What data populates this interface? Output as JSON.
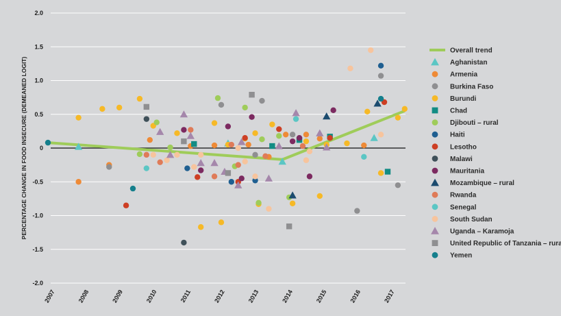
{
  "chart_data": {
    "type": "scatter",
    "title": "",
    "xlabel": "",
    "ylabel": "PERCENTAGE CHANGE IN FOOD INSECURE (DEMEANED LOGIT)",
    "xlim": [
      2007,
      2017.5
    ],
    "ylim": [
      -2.0,
      2.0
    ],
    "xticks": [
      2007,
      2008,
      2009,
      2010,
      2011,
      2012,
      2013,
      2014,
      2015,
      2016,
      2017
    ],
    "yticks": [
      2.0,
      1.5,
      1.0,
      0.5,
      0,
      -0.5,
      -1.0,
      -1.5,
      -2.0
    ],
    "ytick_labels": [
      "2.0",
      "1.5",
      "1.0",
      "0.5",
      "0",
      "-0.5",
      "-1.0",
      "-1.5",
      "-2.0"
    ],
    "grid": "horizontal",
    "legend_position": "right",
    "trend": {
      "name": "Overall trend",
      "color": "#9fcc5a",
      "x": [
        2007,
        2013.9,
        2017.5
      ],
      "y": [
        0.08,
        -0.17,
        0.55
      ]
    },
    "series": [
      {
        "name": "Aghanistan",
        "marker": "triangle",
        "color": "#5bc6c4",
        "points": [
          [
            2007.9,
            0.02
          ],
          [
            2012.3,
            0.07
          ],
          [
            2013.9,
            -0.2
          ],
          [
            2016.6,
            0.15
          ]
        ]
      },
      {
        "name": "Armenia",
        "marker": "circle",
        "color": "#ee8a36",
        "points": [
          [
            2007.9,
            -0.5
          ],
          [
            2008.8,
            -0.25
          ],
          [
            2010.0,
            0.12
          ],
          [
            2011.2,
            0.03
          ],
          [
            2011.9,
            0.04
          ],
          [
            2012.9,
            0.05
          ],
          [
            2013.5,
            -0.13
          ],
          [
            2014.0,
            0.2
          ],
          [
            2014.6,
            0.2
          ],
          [
            2015.0,
            0.14
          ],
          [
            2016.3,
            0.04
          ]
        ]
      },
      {
        "name": "Burkina Faso",
        "marker": "circle",
        "color": "#8f8f91",
        "points": [
          [
            2008.8,
            -0.28
          ],
          [
            2012.1,
            0.64
          ],
          [
            2013.1,
            -0.1
          ],
          [
            2013.3,
            0.7
          ],
          [
            2014.2,
            0.2
          ],
          [
            2016.1,
            -0.93
          ],
          [
            2016.8,
            1.07
          ],
          [
            2017.3,
            -0.55
          ]
        ]
      },
      {
        "name": "Burundi",
        "marker": "circle",
        "color": "#f6b927",
        "points": [
          [
            2007.9,
            0.45
          ],
          [
            2008.6,
            0.58
          ],
          [
            2009.1,
            0.6
          ],
          [
            2009.7,
            0.73
          ],
          [
            2010.1,
            0.33
          ],
          [
            2010.8,
            0.22
          ],
          [
            2011.5,
            -1.17
          ],
          [
            2011.9,
            0.37
          ],
          [
            2012.1,
            -1.1
          ],
          [
            2012.3,
            0.05
          ],
          [
            2012.8,
            0.14
          ],
          [
            2013.1,
            0.22
          ],
          [
            2013.2,
            -0.83
          ],
          [
            2013.6,
            0.35
          ],
          [
            2014.2,
            -0.82
          ],
          [
            2014.6,
            0.1
          ],
          [
            2015.0,
            -0.71
          ],
          [
            2015.2,
            0.05
          ],
          [
            2015.8,
            0.07
          ],
          [
            2016.4,
            0.54
          ],
          [
            2016.8,
            -0.37
          ],
          [
            2017.3,
            0.45
          ],
          [
            2017.5,
            0.58
          ]
        ]
      },
      {
        "name": "Chad",
        "marker": "square",
        "color": "#128c84",
        "points": [
          [
            2011.3,
            0.06
          ],
          [
            2013.6,
            0.03
          ],
          [
            2014.4,
            0.12
          ],
          [
            2015.3,
            0.17
          ],
          [
            2017.0,
            -0.35
          ]
        ]
      },
      {
        "name": "Djibouti – rural",
        "marker": "circle",
        "color": "#9fcc5a",
        "points": [
          [
            2009.7,
            -0.09
          ],
          [
            2010.2,
            0.38
          ],
          [
            2010.6,
            0.01
          ],
          [
            2012.0,
            0.74
          ],
          [
            2012.5,
            -0.27
          ],
          [
            2012.8,
            0.6
          ],
          [
            2013.3,
            0.13
          ],
          [
            2013.8,
            0.18
          ],
          [
            2014.1,
            -0.73
          ],
          [
            2013.2,
            -0.81
          ]
        ]
      },
      {
        "name": "Haiti",
        "marker": "circle",
        "color": "#1f5f91",
        "points": [
          [
            2011.1,
            -0.3
          ],
          [
            2012.4,
            -0.5
          ],
          [
            2013.1,
            -0.48
          ],
          [
            2016.8,
            1.22
          ]
        ]
      },
      {
        "name": "Lesotho",
        "marker": "circle",
        "color": "#cd3f24",
        "points": [
          [
            2009.3,
            -0.85
          ],
          [
            2011.4,
            -0.43
          ],
          [
            2012.6,
            -0.5
          ],
          [
            2012.8,
            0.15
          ],
          [
            2013.8,
            0.28
          ],
          [
            2015.3,
            0.15
          ],
          [
            2016.9,
            0.68
          ]
        ]
      },
      {
        "name": "Malawi",
        "marker": "circle",
        "color": "#3f5059",
        "points": [
          [
            2009.9,
            0.43
          ],
          [
            2011.0,
            -1.4
          ]
        ]
      },
      {
        "name": "Mauritania",
        "marker": "circle",
        "color": "#7c2a60",
        "points": [
          [
            2011.0,
            0.27
          ],
          [
            2011.5,
            -0.33
          ],
          [
            2012.3,
            0.32
          ],
          [
            2012.7,
            -0.45
          ],
          [
            2013.0,
            0.46
          ],
          [
            2014.2,
            0.1
          ],
          [
            2014.4,
            0.15
          ],
          [
            2014.7,
            -0.42
          ],
          [
            2015.4,
            0.56
          ]
        ]
      },
      {
        "name": "Mozambique – rural",
        "marker": "triangle",
        "color": "#1b4b6e",
        "points": [
          [
            2014.2,
            -0.7
          ],
          [
            2015.2,
            0.47
          ],
          [
            2016.7,
            0.66
          ]
        ]
      },
      {
        "name": "Rwanda",
        "marker": "circle",
        "color": "#df7b58",
        "points": [
          [
            2009.9,
            -0.1
          ],
          [
            2010.3,
            -0.21
          ],
          [
            2011.2,
            0.27
          ],
          [
            2011.9,
            -0.42
          ],
          [
            2012.4,
            0.05
          ],
          [
            2012.6,
            -0.25
          ],
          [
            2013.4,
            -0.12
          ],
          [
            2014.5,
            0.03
          ]
        ]
      },
      {
        "name": "Senegal",
        "marker": "circle",
        "color": "#5bc6c4",
        "points": [
          [
            2009.9,
            -0.3
          ],
          [
            2014.3,
            0.43
          ],
          [
            2016.3,
            -0.13
          ]
        ]
      },
      {
        "name": "South Sudan",
        "marker": "circle",
        "color": "#f7c49d",
        "points": [
          [
            2010.1,
            -0.1
          ],
          [
            2010.5,
            -0.18
          ],
          [
            2010.8,
            -0.1
          ],
          [
            2011.3,
            -0.28
          ],
          [
            2011.5,
            -0.1
          ],
          [
            2012.6,
            0.0
          ],
          [
            2012.8,
            -0.2
          ],
          [
            2013.1,
            -0.42
          ],
          [
            2013.5,
            -0.9
          ],
          [
            2014.6,
            -0.18
          ],
          [
            2014.7,
            -0.05
          ],
          [
            2015.9,
            1.18
          ],
          [
            2016.5,
            1.45
          ],
          [
            2016.8,
            0.2
          ]
        ]
      },
      {
        "name": "Uganda – Karamoja",
        "marker": "triangle",
        "color": "#a587ab",
        "points": [
          [
            2010.3,
            0.24
          ],
          [
            2010.6,
            -0.1
          ],
          [
            2011.0,
            0.5
          ],
          [
            2011.2,
            0.18
          ],
          [
            2011.5,
            -0.22
          ],
          [
            2011.9,
            -0.22
          ],
          [
            2012.2,
            -0.35
          ],
          [
            2012.6,
            -0.55
          ],
          [
            2012.7,
            0.09
          ],
          [
            2013.5,
            -0.45
          ],
          [
            2013.8,
            0.03
          ],
          [
            2014.3,
            0.52
          ],
          [
            2015.0,
            0.22
          ],
          [
            2015.2,
            0.01
          ]
        ]
      },
      {
        "name": "United Republic of Tanzania – rural",
        "marker": "square",
        "color": "#8f8f91",
        "points": [
          [
            2009.9,
            0.61
          ],
          [
            2011.0,
            0.1
          ],
          [
            2012.3,
            -0.37
          ],
          [
            2013.0,
            0.79
          ],
          [
            2014.1,
            -1.16
          ]
        ]
      },
      {
        "name": "Yemen",
        "marker": "circle",
        "color": "#157f8c",
        "points": [
          [
            2007.0,
            0.08
          ],
          [
            2009.5,
            -0.6
          ],
          [
            2016.8,
            0.73
          ]
        ]
      }
    ]
  }
}
